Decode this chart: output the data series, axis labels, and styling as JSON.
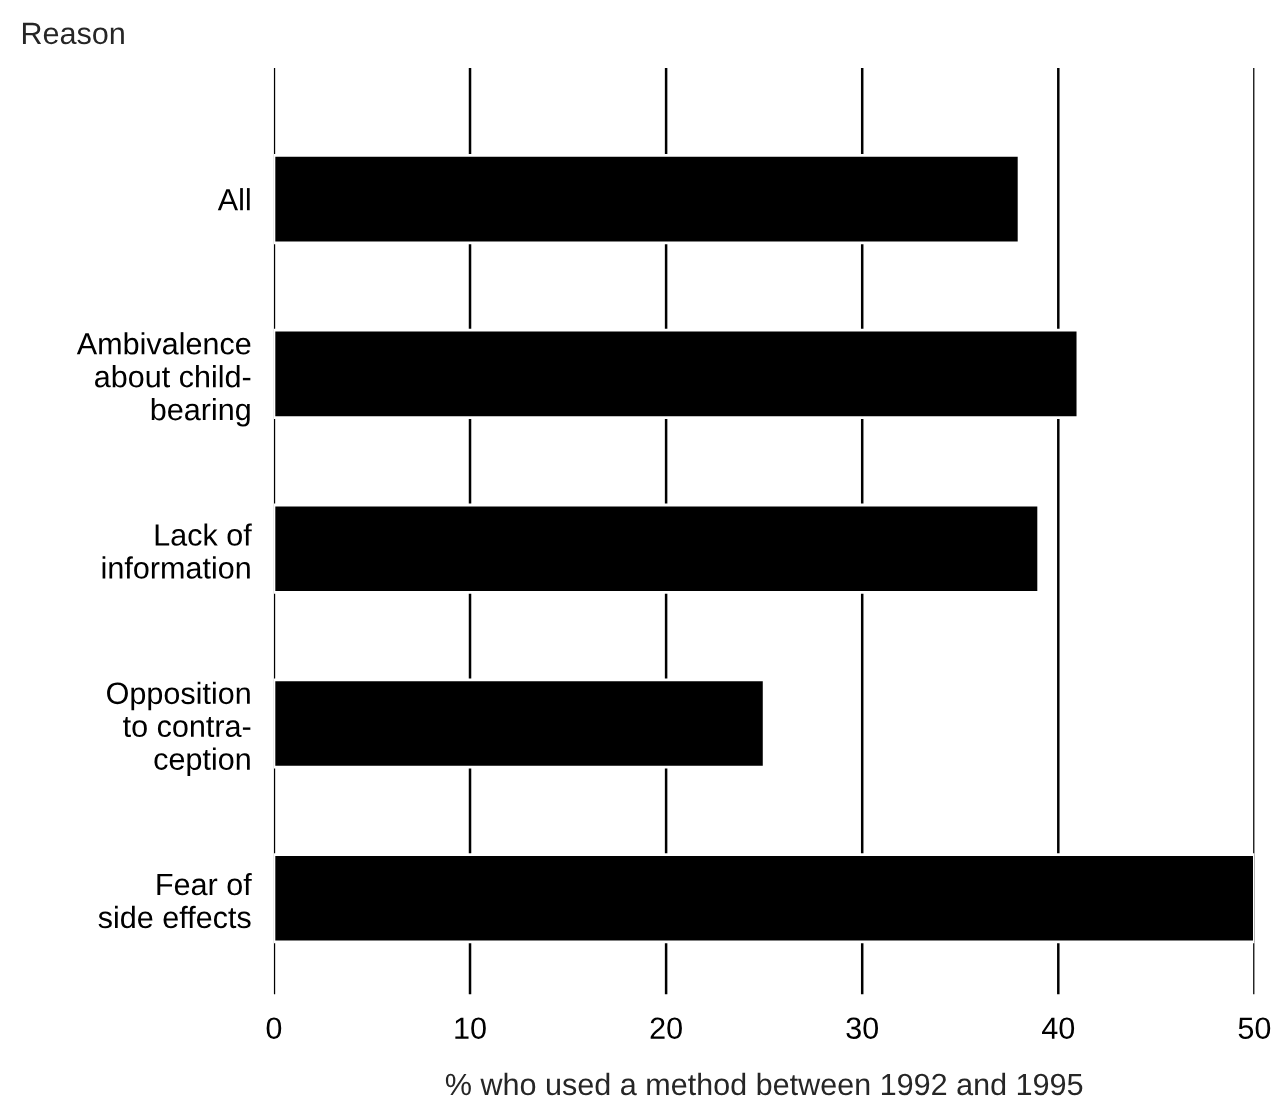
{
  "chart_data": {
    "type": "bar",
    "orientation": "horizontal",
    "ylabel": "Reason",
    "xlabel": "% who used a method between 1992 and 1995",
    "categories": [
      "All",
      "Ambivalence\nabout child-\nbearing",
      "Lack of\ninformation",
      "Opposition\nto contra-\nception",
      "Fear of\nside effects"
    ],
    "values": [
      38,
      41,
      39,
      25,
      50
    ],
    "color": "#000000",
    "xlim": [
      0,
      50
    ],
    "xticks": [
      0,
      10,
      20,
      30,
      40,
      50
    ],
    "grid": "x"
  }
}
